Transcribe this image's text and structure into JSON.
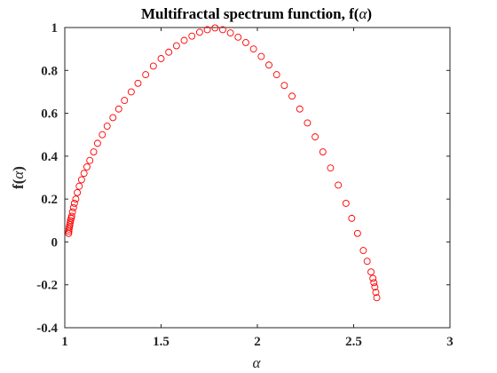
{
  "chart_data": {
    "type": "scatter",
    "title_text": "Multifractal spectrum function, f(",
    "title_symbol": "α",
    "title_close": ")",
    "xlabel": "α",
    "ylabel_text": "f(",
    "ylabel_symbol": "α",
    "ylabel_close": ")",
    "xlim": [
      1,
      3
    ],
    "ylim": [
      -0.4,
      1
    ],
    "xticks": [
      "1",
      "1.5",
      "2",
      "2.5",
      "3"
    ],
    "yticks": [
      "-0.4",
      "-0.2",
      "0",
      "0.2",
      "0.4",
      "0.6",
      "0.8",
      "1"
    ],
    "grid": false,
    "legend": false,
    "marker": "open circle",
    "marker_color": "#ff0000",
    "series": [
      {
        "x": [
          1.02,
          1.021,
          1.022,
          1.024,
          1.026,
          1.028,
          1.03,
          1.033,
          1.036,
          1.04,
          1.045,
          1.05,
          1.057,
          1.065,
          1.075,
          1.087,
          1.1,
          1.115,
          1.13,
          1.15,
          1.17,
          1.195,
          1.22,
          1.25,
          1.28,
          1.31,
          1.345,
          1.38,
          1.42,
          1.46,
          1.5,
          1.54,
          1.58,
          1.62,
          1.66,
          1.7,
          1.74,
          1.78,
          1.82,
          1.86,
          1.9,
          1.94,
          1.98,
          2.02,
          2.06,
          2.1,
          2.14,
          2.18,
          2.22,
          2.26,
          2.3,
          2.34,
          2.38,
          2.42,
          2.46,
          2.49,
          2.52,
          2.55,
          2.57,
          2.59,
          2.6,
          2.605,
          2.61,
          2.615,
          2.62
        ],
        "y": [
          0.04,
          0.05,
          0.06,
          0.07,
          0.08,
          0.09,
          0.1,
          0.11,
          0.12,
          0.14,
          0.16,
          0.18,
          0.2,
          0.23,
          0.26,
          0.29,
          0.32,
          0.35,
          0.38,
          0.42,
          0.46,
          0.5,
          0.54,
          0.58,
          0.62,
          0.66,
          0.7,
          0.74,
          0.78,
          0.82,
          0.855,
          0.885,
          0.915,
          0.94,
          0.96,
          0.978,
          0.99,
          0.998,
          0.99,
          0.975,
          0.955,
          0.93,
          0.9,
          0.865,
          0.825,
          0.78,
          0.73,
          0.68,
          0.62,
          0.555,
          0.49,
          0.42,
          0.345,
          0.265,
          0.18,
          0.11,
          0.04,
          -0.04,
          -0.09,
          -0.14,
          -0.17,
          -0.19,
          -0.21,
          -0.235,
          -0.26
        ]
      }
    ]
  }
}
